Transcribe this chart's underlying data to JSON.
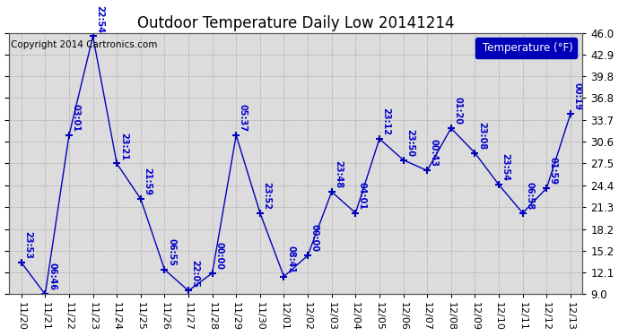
{
  "title": "Outdoor Temperature Daily Low 20141214",
  "legend_label": "Temperature (°F)",
  "background_color": "#ffffff",
  "plot_bg_color": "#dcdcdc",
  "line_color": "#0000bb",
  "text_color": "#0000cc",
  "copyright_text": "Copyright 2014 Cartronics.com",
  "ylim": [
    9.0,
    46.0
  ],
  "yticks": [
    9.0,
    12.1,
    15.2,
    18.2,
    21.3,
    24.4,
    27.5,
    30.6,
    33.7,
    36.8,
    39.8,
    42.9,
    46.0
  ],
  "x_labels": [
    "11/20",
    "11/21",
    "11/22",
    "11/23",
    "11/24",
    "11/25",
    "11/26",
    "11/27",
    "11/28",
    "11/29",
    "11/30",
    "12/01",
    "12/02",
    "12/03",
    "12/04",
    "12/05",
    "12/06",
    "12/07",
    "12/08",
    "12/09",
    "12/10",
    "12/11",
    "12/12",
    "12/13"
  ],
  "y_values": [
    13.5,
    9.0,
    31.5,
    45.5,
    27.5,
    22.5,
    12.5,
    9.5,
    12.0,
    31.5,
    20.5,
    11.5,
    14.5,
    23.5,
    20.5,
    31.0,
    28.0,
    26.5,
    32.5,
    29.0,
    24.5,
    20.5,
    24.0,
    34.5
  ],
  "time_labels": [
    "23:53",
    "06:46",
    "03:01",
    "22:54",
    "23:21",
    "21:59",
    "06:55",
    "22:05",
    "00:00",
    "05:37",
    "23:52",
    "08:41",
    "00:00",
    "23:48",
    "04:01",
    "23:12",
    "23:50",
    "00:43",
    "01:20",
    "23:08",
    "23:54",
    "06:58",
    "01:59",
    "00:19"
  ],
  "marker": "+",
  "marker_size": 6,
  "line_width": 1.0,
  "label_fontsize": 7.0,
  "label_rotation": 270,
  "grid_color": "#aaaaaa",
  "grid_linestyle": "--",
  "grid_linewidth": 0.5,
  "title_fontsize": 12,
  "copyright_fontsize": 7.5,
  "tick_fontsize": 8.0,
  "right_ytick_fontsize": 8.5
}
